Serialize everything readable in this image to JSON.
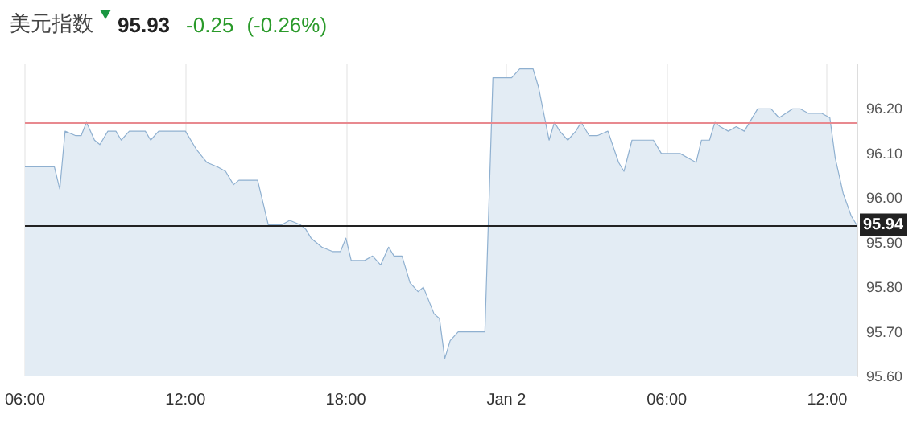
{
  "chart_data": {
    "type": "area",
    "title": "美元指数",
    "annotations": [
      "95.93",
      "-0.25",
      "(-0.26%)"
    ],
    "x": [
      "--01-01T06:00",
      "--01-01T07:06",
      "--01-01T07:18",
      "--01-01T07:30",
      "--01-01T07:54",
      "--01-01T08:06",
      "--01-01T08:18",
      "--01-01T08:36",
      "--01-01T08:48",
      "--01-01T09:06",
      "--01-01T09:24",
      "--01-01T09:36",
      "--01-01T09:54",
      "--01-01T10:30",
      "--01-01T10:42",
      "--01-01T11:00",
      "--01-01T12:00",
      "--01-01T12:24",
      "--01-01T12:48",
      "--01-01T13:12",
      "--01-01T13:30",
      "--01-01T13:48",
      "--01-01T14:00",
      "--01-01T14:42",
      "--01-01T15:06",
      "--01-01T15:36",
      "--01-01T15:54",
      "--01-01T16:18",
      "--01-01T16:30",
      "--01-01T16:42",
      "--01-01T17:06",
      "--01-01T17:30",
      "--01-01T17:48",
      "--01-01T18:00",
      "--01-01T18:12",
      "--01-01T18:42",
      "--01-01T19:00",
      "--01-01T19:18",
      "--01-01T19:36",
      "--01-01T19:48",
      "--01-01T20:06",
      "--01-01T20:24",
      "--01-01T20:42",
      "--01-01T20:54",
      "--01-01T21:18",
      "--01-01T21:30",
      "--01-01T21:42",
      "--01-01T21:54",
      "--01-01T22:12",
      "--01-01T23:12",
      "--01-01T23:30",
      "--01-02T00:12",
      "--01-02T00:30",
      "--01-02T01:00",
      "--01-02T01:12",
      "--01-02T01:36",
      "--01-02T01:48",
      "--01-02T02:00",
      "--01-02T02:18",
      "--01-02T02:36",
      "--01-02T02:48",
      "--01-02T03:06",
      "--01-02T03:24",
      "--01-02T03:48",
      "--01-02T04:12",
      "--01-02T04:24",
      "--01-02T04:42",
      "--01-02T05:30",
      "--01-02T05:48",
      "--01-02T06:12",
      "--01-02T06:30",
      "--01-02T06:48",
      "--01-02T07:06",
      "--01-02T07:18",
      "--01-02T07:36",
      "--01-02T07:48",
      "--01-02T08:00",
      "--01-02T08:18",
      "--01-02T08:36",
      "--01-02T08:54",
      "--01-02T09:24",
      "--01-02T09:54",
      "--01-02T10:12",
      "--01-02T10:42",
      "--01-02T11:00",
      "--01-02T11:18",
      "--01-02T11:48",
      "--01-02T12:06",
      "--01-02T12:18",
      "--01-02T12:36",
      "--01-02T12:54",
      "--01-02T13:06"
    ],
    "series": [
      {
        "color": "#8fb0d0",
        "values": [
          96.07,
          96.07,
          96.02,
          96.15,
          96.14,
          96.14,
          96.17,
          96.13,
          96.12,
          96.15,
          96.15,
          96.13,
          96.15,
          96.15,
          96.13,
          96.15,
          96.15,
          96.11,
          96.08,
          96.07,
          96.06,
          96.03,
          96.04,
          96.04,
          95.94,
          95.94,
          95.95,
          95.94,
          95.93,
          95.91,
          95.89,
          95.88,
          95.88,
          95.91,
          95.86,
          95.86,
          95.87,
          95.85,
          95.89,
          95.87,
          95.87,
          95.81,
          95.79,
          95.8,
          95.74,
          95.73,
          95.64,
          95.68,
          95.7,
          95.7,
          96.27,
          96.27,
          96.29,
          96.29,
          96.25,
          96.13,
          96.17,
          96.15,
          96.13,
          96.15,
          96.17,
          96.14,
          96.14,
          96.15,
          96.08,
          96.06,
          96.13,
          96.13,
          96.1,
          96.1,
          96.1,
          96.09,
          96.08,
          96.13,
          96.13,
          96.17,
          96.16,
          96.15,
          96.16,
          96.15,
          96.2,
          96.2,
          96.18,
          96.2,
          96.2,
          96.19,
          96.19,
          96.18,
          96.09,
          96.01,
          95.96,
          95.94
        ]
      }
    ],
    "xlim": [
      "--01-01T06:00",
      "--01-02T13:06"
    ],
    "xticks": [
      {
        "value": "--01-01T06:00",
        "label": "06:00"
      },
      {
        "value": "--01-01T12:00",
        "label": "12:00"
      },
      {
        "value": "--01-01T18:00",
        "label": "18:00"
      },
      {
        "value": "--01-02T00:00",
        "label": "Jan 2"
      },
      {
        "value": "--01-02T06:00",
        "label": "06:00"
      },
      {
        "value": "--01-02T12:00",
        "label": "12:00"
      }
    ],
    "ylim": [
      95.6,
      96.3
    ],
    "yticks": [
      {
        "value": 95.6,
        "label": "95.60"
      },
      {
        "value": 95.7,
        "label": "95.70"
      },
      {
        "value": 95.8,
        "label": "95.80"
      },
      {
        "value": 95.9,
        "label": "95.90"
      },
      {
        "value": 96.0,
        "label": "96.00"
      },
      {
        "value": 96.1,
        "label": "96.10"
      },
      {
        "value": 96.2,
        "label": "96.20"
      }
    ],
    "ref_lines": [
      {
        "axis": "y",
        "value": 96.17,
        "color": "#e8898f"
      },
      {
        "axis": "y",
        "value": 95.94,
        "label": "95.94",
        "color": "#222222"
      }
    ],
    "grid": "x",
    "marker": "none",
    "line_style": "solid"
  }
}
